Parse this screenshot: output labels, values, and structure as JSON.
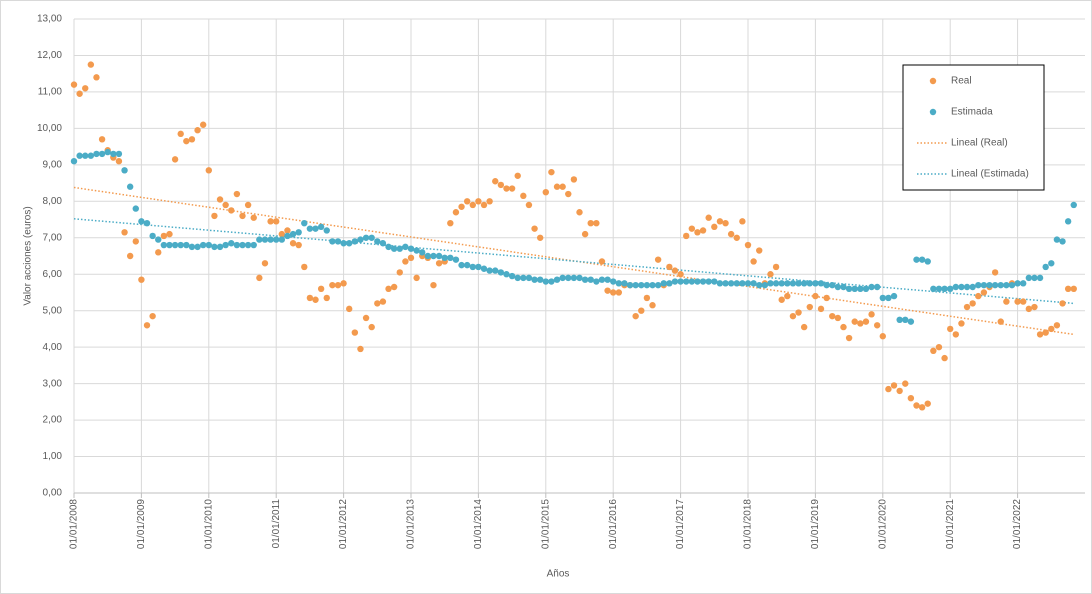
{
  "chart_data": {
    "type": "scatter",
    "y_label": "Valor acciones (euros)",
    "x_label": "Años",
    "ylim": [
      0,
      13
    ],
    "yticks": [
      {
        "value": 0,
        "label": "0,00"
      },
      {
        "value": 1,
        "label": "1,00"
      },
      {
        "value": 2,
        "label": "2,00"
      },
      {
        "value": 3,
        "label": "3,00"
      },
      {
        "value": 4,
        "label": "4,00"
      },
      {
        "value": 5,
        "label": "5,00"
      },
      {
        "value": 6,
        "label": "6,00"
      },
      {
        "value": 7,
        "label": "7,00"
      },
      {
        "value": 8,
        "label": "8,00"
      },
      {
        "value": 9,
        "label": "9,00"
      },
      {
        "value": 10,
        "label": "10,00"
      },
      {
        "value": 11,
        "label": "11,00"
      },
      {
        "value": 12,
        "label": "12,00"
      },
      {
        "value": 13,
        "label": "13,00"
      }
    ],
    "grid": true,
    "legend": "top-right",
    "categories": [
      "01/01/2008",
      null,
      null,
      null,
      null,
      null,
      null,
      null,
      null,
      null,
      null,
      null,
      "01/01/2009",
      null,
      null,
      null,
      null,
      null,
      null,
      null,
      null,
      null,
      null,
      null,
      "01/01/2010",
      null,
      null,
      null,
      null,
      null,
      null,
      null,
      null,
      null,
      null,
      null,
      "01/01/2011",
      null,
      null,
      null,
      null,
      null,
      null,
      null,
      null,
      null,
      null,
      null,
      "01/01/2012",
      null,
      null,
      null,
      null,
      null,
      null,
      null,
      null,
      null,
      null,
      null,
      "01/01/2013",
      null,
      null,
      null,
      null,
      null,
      null,
      null,
      null,
      null,
      null,
      null,
      "01/01/2014",
      null,
      null,
      null,
      null,
      null,
      null,
      null,
      null,
      null,
      null,
      null,
      "01/01/2015",
      null,
      null,
      null,
      null,
      null,
      null,
      null,
      null,
      null,
      null,
      null,
      "01/01/2016",
      null,
      null,
      null,
      null,
      null,
      null,
      null,
      null,
      null,
      null,
      null,
      "01/01/2017",
      null,
      null,
      null,
      null,
      null,
      null,
      null,
      null,
      null,
      null,
      null,
      "01/01/2018",
      null,
      null,
      null,
      null,
      null,
      null,
      null,
      null,
      null,
      null,
      null,
      "01/01/2019",
      null,
      null,
      null,
      null,
      null,
      null,
      null,
      null,
      null,
      null,
      null,
      "01/01/2020",
      null,
      null,
      null,
      null,
      null,
      null,
      null,
      null,
      null,
      null,
      null,
      "01/01/2021",
      null,
      null,
      null,
      null,
      null,
      null,
      null,
      null,
      null,
      null,
      null,
      "01/01/2022",
      null,
      null,
      null,
      null,
      null,
      null,
      null,
      null,
      null,
      null
    ],
    "series": [
      {
        "name": "Real",
        "color": "#f39a4e",
        "values": [
          11.2,
          10.95,
          11.1,
          11.75,
          11.4,
          9.7,
          9.4,
          9.2,
          9.1,
          7.15,
          6.5,
          6.9,
          5.85,
          4.6,
          4.85,
          6.6,
          7.05,
          7.1,
          9.15,
          9.85,
          9.65,
          9.7,
          9.95,
          10.1,
          8.85,
          7.6,
          8.05,
          7.9,
          7.75,
          8.2,
          7.6,
          7.9,
          7.55,
          5.9,
          6.3,
          7.45,
          7.45,
          7.1,
          7.2,
          6.85,
          6.8,
          6.2,
          5.35,
          5.3,
          5.6,
          5.35,
          5.7,
          5.7,
          5.75,
          5.05,
          4.4,
          3.95,
          4.8,
          4.55,
          5.2,
          5.25,
          5.6,
          5.65,
          6.05,
          6.35,
          6.45,
          5.9,
          6.5,
          6.45,
          5.7,
          6.3,
          6.35,
          7.4,
          7.7,
          7.85,
          8.0,
          7.9,
          8.0,
          7.9,
          8.0,
          8.55,
          8.45,
          8.35,
          8.35,
          8.7,
          8.15,
          7.9,
          7.25,
          7.0,
          8.25,
          8.8,
          8.4,
          8.4,
          8.2,
          8.6,
          7.7,
          7.1,
          7.4,
          7.4,
          6.35,
          5.55,
          5.5,
          5.5,
          5.7,
          5.7,
          4.85,
          5.0,
          5.35,
          5.15,
          6.4,
          5.7,
          6.2,
          6.1,
          6.0,
          7.05,
          7.25,
          7.15,
          7.2,
          7.55,
          7.3,
          7.45,
          7.4,
          7.1,
          7.0,
          7.45,
          6.8,
          6.35,
          6.65,
          5.75,
          6.0,
          6.2,
          5.3,
          5.4,
          4.85,
          4.95,
          4.55,
          5.1,
          5.4,
          5.05,
          5.35,
          4.85,
          4.8,
          4.55,
          4.25,
          4.7,
          4.65,
          4.7,
          4.9,
          4.6,
          4.3,
          2.85,
          2.95,
          2.8,
          3.0,
          2.6,
          2.4,
          2.35,
          2.45,
          3.9,
          4.0,
          3.7,
          4.5,
          4.35,
          4.65,
          5.1,
          5.2,
          5.4,
          5.5,
          5.65,
          6.05,
          4.7,
          5.25,
          5.75,
          5.25,
          5.25,
          5.05,
          5.1,
          4.35,
          4.4,
          4.5,
          4.6,
          5.2,
          5.6,
          5.6
        ]
      },
      {
        "name": "Estimada",
        "color": "#4bacc6",
        "values": [
          9.1,
          9.25,
          9.25,
          9.25,
          9.3,
          9.3,
          9.35,
          9.3,
          9.3,
          8.85,
          8.4,
          7.8,
          7.45,
          7.4,
          7.05,
          6.95,
          6.8,
          6.8,
          6.8,
          6.8,
          6.8,
          6.75,
          6.75,
          6.8,
          6.8,
          6.75,
          6.75,
          6.8,
          6.85,
          6.8,
          6.8,
          6.8,
          6.8,
          6.95,
          6.95,
          6.95,
          6.95,
          6.95,
          7.05,
          7.1,
          7.15,
          7.4,
          7.25,
          7.25,
          7.3,
          7.2,
          6.9,
          6.9,
          6.85,
          6.85,
          6.9,
          6.95,
          7.0,
          7.0,
          6.9,
          6.85,
          6.75,
          6.7,
          6.7,
          6.75,
          6.7,
          6.65,
          6.6,
          6.5,
          6.5,
          6.5,
          6.45,
          6.45,
          6.4,
          6.25,
          6.25,
          6.2,
          6.2,
          6.15,
          6.1,
          6.1,
          6.05,
          6.0,
          5.95,
          5.9,
          5.9,
          5.9,
          5.85,
          5.85,
          5.8,
          5.8,
          5.85,
          5.9,
          5.9,
          5.9,
          5.9,
          5.85,
          5.85,
          5.8,
          5.85,
          5.85,
          5.8,
          5.75,
          5.75,
          5.7,
          5.7,
          5.7,
          5.7,
          5.7,
          5.7,
          5.75,
          5.75,
          5.8,
          5.8,
          5.8,
          5.8,
          5.8,
          5.8,
          5.8,
          5.8,
          5.75,
          5.75,
          5.75,
          5.75,
          5.75,
          5.75,
          5.75,
          5.7,
          5.7,
          5.75,
          5.75,
          5.75,
          5.75,
          5.75,
          5.75,
          5.75,
          5.75,
          5.75,
          5.75,
          5.7,
          5.7,
          5.65,
          5.65,
          5.6,
          5.6,
          5.6,
          5.6,
          5.65,
          5.65,
          5.35,
          5.35,
          5.4,
          4.75,
          4.75,
          4.7,
          6.4,
          6.4,
          6.35,
          5.6,
          5.6,
          5.6,
          5.6,
          5.65,
          5.65,
          5.65,
          5.65,
          5.7,
          5.7,
          5.7,
          5.7,
          5.7,
          5.7,
          5.7,
          5.75,
          5.75,
          5.9,
          5.9,
          5.9,
          6.2,
          6.3,
          6.95,
          6.9,
          7.45,
          7.9
        ]
      }
    ],
    "trendlines": [
      {
        "name": "Lineal (Real)",
        "color": "#f39a4e",
        "values": [
          8.38,
          4.35
        ]
      },
      {
        "name": "Lineal (Estimada)",
        "color": "#4bacc6",
        "values": [
          7.52,
          5.2
        ]
      }
    ]
  }
}
